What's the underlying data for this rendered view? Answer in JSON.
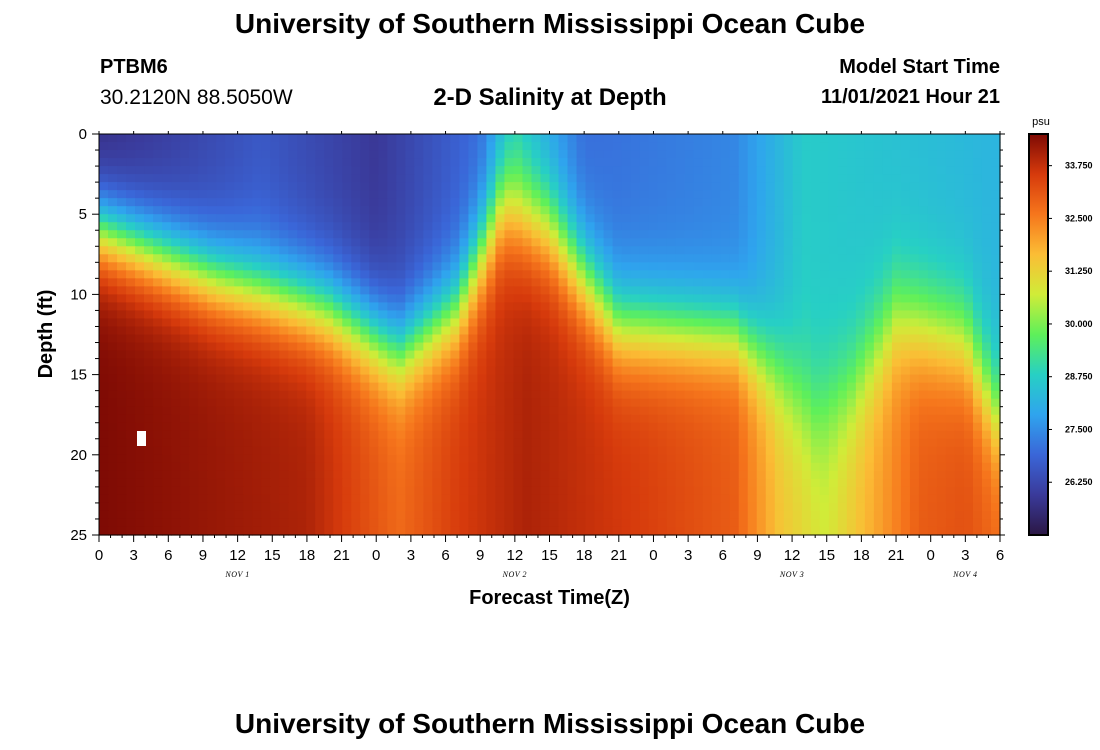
{
  "header": {
    "title": "University of Southern Mississippi Ocean Cube",
    "station": "PTBM6",
    "coordinates": "30.2120N  88.5050W",
    "plot_title": "2-D Salinity at Depth",
    "start_label": "Model Start Time",
    "start_value": "11/01/2021 Hour 21"
  },
  "footer": {
    "title": "University of Southern Mississippi Ocean Cube"
  },
  "colors": {
    "colormap": [
      "#2b1744",
      "#3a3a9a",
      "#3a66d8",
      "#2fa4ee",
      "#27d0c4",
      "#5ef05a",
      "#d0ec38",
      "#fbbd35",
      "#f6761c",
      "#d63a0c",
      "#7e0a04"
    ]
  },
  "chart_data": {
    "type": "heatmap",
    "title": "2-D Salinity at Depth",
    "xlabel": "Forecast Time(Z)",
    "ylabel": "Depth (ft)",
    "x_range_hours": [
      0,
      78
    ],
    "y_range_ft": [
      0,
      25
    ],
    "y_inverted": true,
    "x_ticks": [
      {
        "hour": 0,
        "label": "0"
      },
      {
        "hour": 3,
        "label": "3"
      },
      {
        "hour": 6,
        "label": "6"
      },
      {
        "hour": 9,
        "label": "9"
      },
      {
        "hour": 12,
        "label": "12"
      },
      {
        "hour": 15,
        "label": "15"
      },
      {
        "hour": 18,
        "label": "18"
      },
      {
        "hour": 21,
        "label": "21"
      },
      {
        "hour": 24,
        "label": "0"
      },
      {
        "hour": 27,
        "label": "3"
      },
      {
        "hour": 30,
        "label": "6"
      },
      {
        "hour": 33,
        "label": "9"
      },
      {
        "hour": 36,
        "label": "12"
      },
      {
        "hour": 39,
        "label": "15"
      },
      {
        "hour": 42,
        "label": "18"
      },
      {
        "hour": 45,
        "label": "21"
      },
      {
        "hour": 48,
        "label": "0"
      },
      {
        "hour": 51,
        "label": "3"
      },
      {
        "hour": 54,
        "label": "6"
      },
      {
        "hour": 57,
        "label": "9"
      },
      {
        "hour": 60,
        "label": "12"
      },
      {
        "hour": 63,
        "label": "15"
      },
      {
        "hour": 66,
        "label": "18"
      },
      {
        "hour": 69,
        "label": "21"
      },
      {
        "hour": 72,
        "label": "0"
      },
      {
        "hour": 75,
        "label": "3"
      },
      {
        "hour": 78,
        "label": "6"
      }
    ],
    "y_ticks": [
      0,
      5,
      10,
      15,
      20,
      25
    ],
    "day_labels": [
      {
        "hour": 12,
        "label": "NOV 1"
      },
      {
        "hour": 36,
        "label": "NOV 2"
      },
      {
        "hour": 60,
        "label": "NOV 3"
      },
      {
        "hour": 75,
        "label": "NOV 4"
      }
    ],
    "colorbar": {
      "unit": "psu",
      "range": [
        25.0,
        34.5
      ],
      "ticks": [
        {
          "value": 33.75,
          "label": "33.750"
        },
        {
          "value": 32.5,
          "label": "32.500"
        },
        {
          "value": 31.25,
          "label": "31.250"
        },
        {
          "value": 30.0,
          "label": "30.000"
        },
        {
          "value": 28.75,
          "label": "28.750"
        },
        {
          "value": 27.5,
          "label": "27.500"
        },
        {
          "value": 26.25,
          "label": "26.250"
        }
      ]
    },
    "halocline_depth_ft": [
      {
        "hour": 0,
        "depth": 6.0
      },
      {
        "hour": 10,
        "depth": 9.0
      },
      {
        "hour": 20,
        "depth": 11.0
      },
      {
        "hour": 26,
        "depth": 13.5
      },
      {
        "hour": 31,
        "depth": 11.0
      },
      {
        "hour": 35,
        "depth": 4.5
      },
      {
        "hour": 39,
        "depth": 6.0
      },
      {
        "hour": 45,
        "depth": 12.0
      },
      {
        "hour": 55,
        "depth": 12.5
      },
      {
        "hour": 59,
        "depth": 15.0
      },
      {
        "hour": 62,
        "depth": 17.5
      },
      {
        "hour": 65,
        "depth": 16.0
      },
      {
        "hour": 69,
        "depth": 11.5
      },
      {
        "hour": 75,
        "depth": 13.0
      },
      {
        "hour": 78,
        "depth": 18.0
      }
    ],
    "surface_salinity_psu": [
      {
        "hour": 0,
        "value": 25.6
      },
      {
        "hour": 14,
        "value": 26.6
      },
      {
        "hour": 24,
        "value": 25.9
      },
      {
        "hour": 33,
        "value": 27.0
      },
      {
        "hour": 36,
        "value": 28.6
      },
      {
        "hour": 42,
        "value": 27.0
      },
      {
        "hour": 55,
        "value": 27.4
      },
      {
        "hour": 61,
        "value": 28.7
      },
      {
        "hour": 78,
        "value": 28.2
      }
    ],
    "bottom_salinity_psu": [
      {
        "hour": 0,
        "value": 34.5
      },
      {
        "hour": 18,
        "value": 34.0
      },
      {
        "hour": 26,
        "value": 32.8
      },
      {
        "hour": 31,
        "value": 33.5
      },
      {
        "hour": 37,
        "value": 34.0
      },
      {
        "hour": 47,
        "value": 33.5
      },
      {
        "hour": 55,
        "value": 33.0
      },
      {
        "hour": 59,
        "value": 31.5
      },
      {
        "hour": 63,
        "value": 30.8
      },
      {
        "hour": 71,
        "value": 33.0
      },
      {
        "hour": 75,
        "value": 33.2
      },
      {
        "hour": 78,
        "value": 32.8
      }
    ],
    "gradient_width_ft": [
      {
        "hour": 0,
        "value": 3.5
      },
      {
        "hour": 30,
        "value": 4.0
      },
      {
        "hour": 36,
        "value": 4.5
      },
      {
        "hour": 56,
        "value": 3.5
      },
      {
        "hour": 62,
        "value": 5.0
      },
      {
        "hour": 70,
        "value": 4.5
      },
      {
        "hour": 78,
        "value": 4.5
      }
    ]
  }
}
